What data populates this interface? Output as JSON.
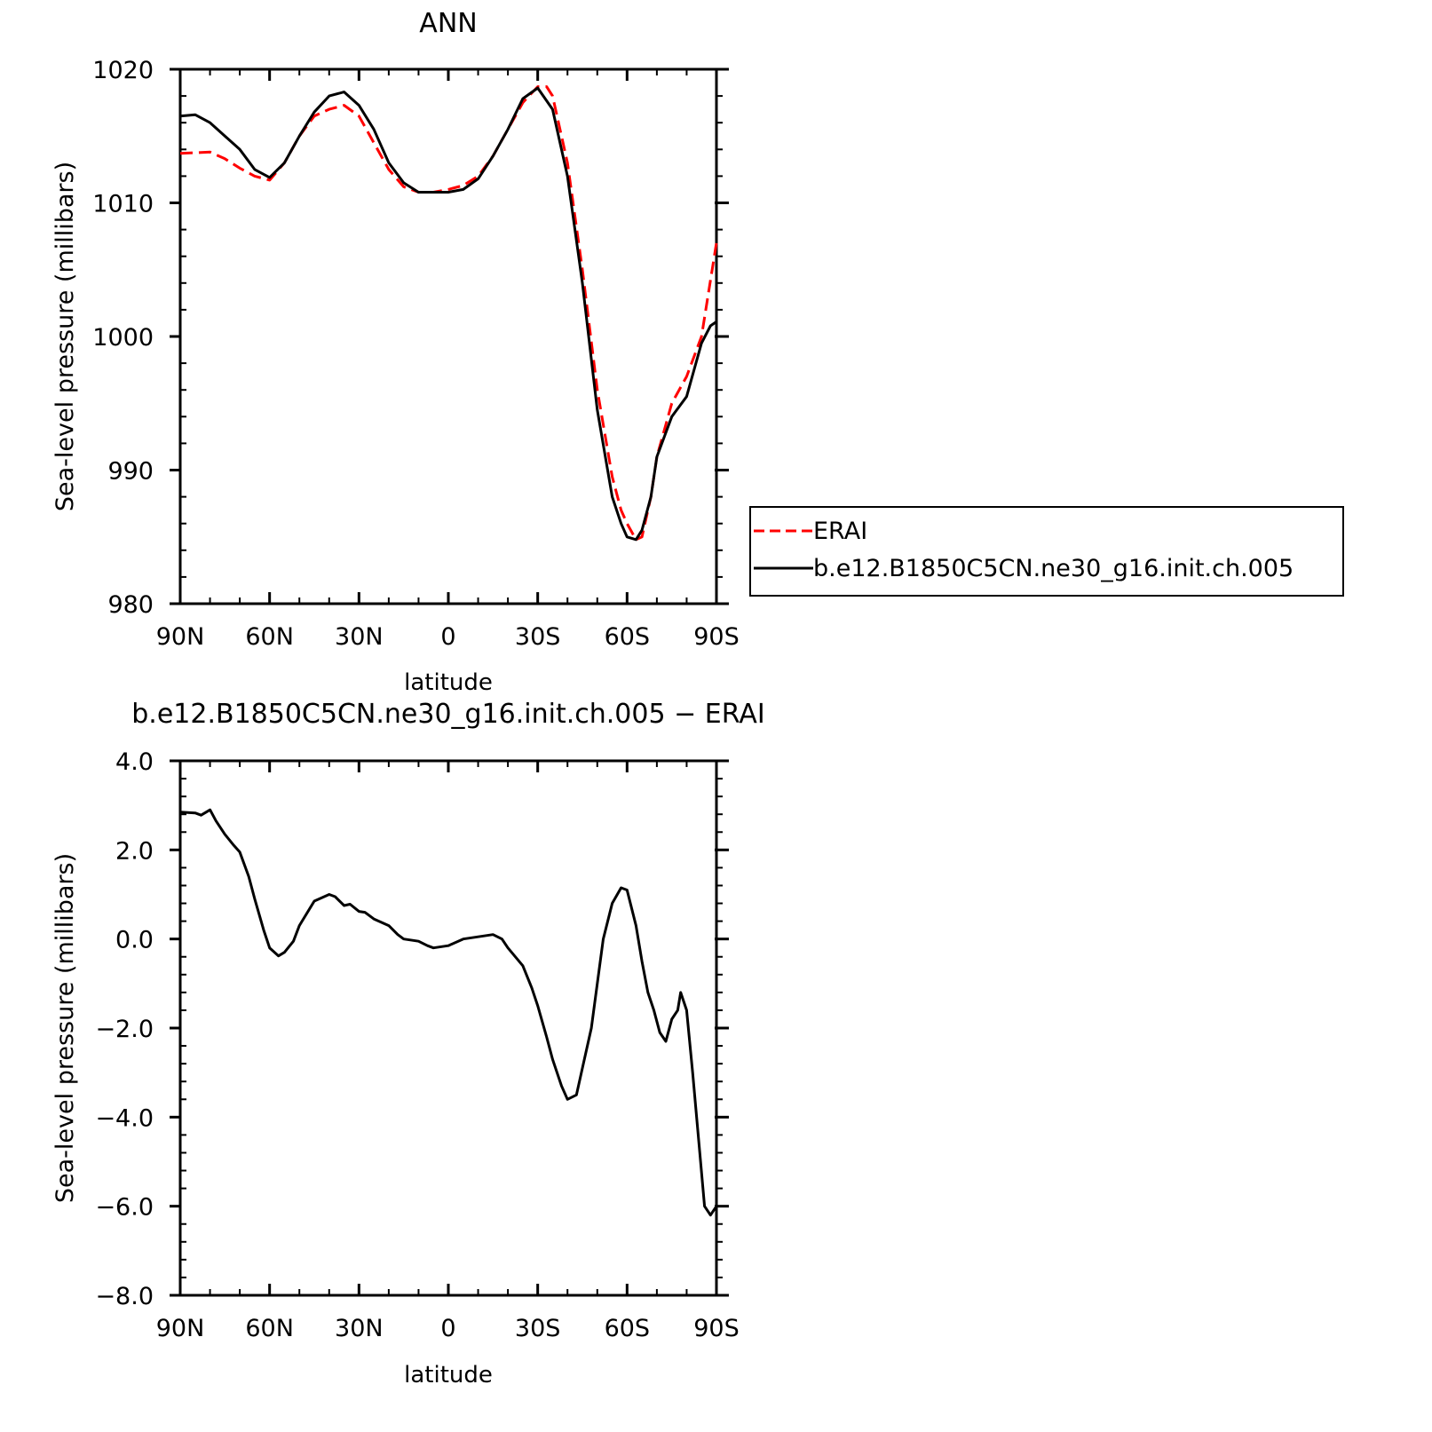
{
  "chart_data": [
    {
      "type": "line",
      "title": "ANN",
      "xlabel": "latitude",
      "ylabel": "Sea-level pressure (millibars)",
      "xlim": [
        90,
        -90
      ],
      "ylim": [
        980,
        1020
      ],
      "x_ticks": [
        {
          "value": 90,
          "label": "90N"
        },
        {
          "value": 60,
          "label": "60N"
        },
        {
          "value": 30,
          "label": "30N"
        },
        {
          "value": 0,
          "label": "0"
        },
        {
          "value": -30,
          "label": "30S"
        },
        {
          "value": -60,
          "label": "60S"
        },
        {
          "value": -90,
          "label": "90S"
        }
      ],
      "y_ticks": [
        {
          "value": 1020,
          "label": "1020"
        },
        {
          "value": 1010,
          "label": "1010"
        },
        {
          "value": 1000,
          "label": "1000"
        },
        {
          "value": 990,
          "label": "990"
        },
        {
          "value": 980,
          "label": "980"
        }
      ],
      "grid": false,
      "legend": {
        "placement": "right-outside"
      },
      "series": [
        {
          "name": "ERAI",
          "color": "#ff0000",
          "dash": "dashed",
          "x": [
            90,
            80,
            75,
            70,
            65,
            60,
            55,
            50,
            45,
            40,
            35,
            30,
            25,
            20,
            15,
            10,
            5,
            0,
            -5,
            -10,
            -15,
            -20,
            -25,
            -30,
            -33,
            -35,
            -40,
            -45,
            -50,
            -55,
            -58,
            -60,
            -63,
            -65,
            -68,
            -70,
            -75,
            -80,
            -85,
            -90
          ],
          "y": [
            1013.7,
            1013.8,
            1013.3,
            1012.6,
            1012.0,
            1011.7,
            1013.0,
            1015.0,
            1016.5,
            1017.0,
            1017.3,
            1016.5,
            1014.5,
            1012.5,
            1011.2,
            1010.8,
            1010.8,
            1011.0,
            1011.3,
            1012.0,
            1013.5,
            1015.5,
            1017.5,
            1018.7,
            1018.7,
            1018.0,
            1013.0,
            1005.0,
            996.0,
            989.5,
            987.0,
            986.0,
            984.8,
            985.0,
            988.0,
            991.0,
            995.0,
            997.0,
            1000.0,
            1007.0
          ]
        },
        {
          "name": "b.e12.B1850C5CN.ne30_g16.init.ch.005",
          "color": "#000000",
          "dash": "solid",
          "x": [
            90,
            85,
            80,
            75,
            70,
            65,
            60,
            55,
            50,
            45,
            40,
            35,
            30,
            25,
            20,
            15,
            10,
            5,
            0,
            -5,
            -10,
            -15,
            -20,
            -25,
            -30,
            -35,
            -40,
            -45,
            -50,
            -55,
            -58,
            -60,
            -63,
            -65,
            -68,
            -70,
            -75,
            -80,
            -85,
            -88,
            -90
          ],
          "y": [
            1016.5,
            1016.6,
            1016.0,
            1015.0,
            1014.0,
            1012.5,
            1011.9,
            1013.0,
            1015.0,
            1016.8,
            1018.0,
            1018.3,
            1017.3,
            1015.5,
            1013.0,
            1011.5,
            1010.8,
            1010.8,
            1010.8,
            1011.0,
            1011.8,
            1013.5,
            1015.5,
            1017.8,
            1018.6,
            1017.0,
            1012.0,
            1004.0,
            994.5,
            988.0,
            986.0,
            985.0,
            984.8,
            985.5,
            988.0,
            991.0,
            994.0,
            995.5,
            999.5,
            1000.8,
            1001.1
          ]
        }
      ]
    },
    {
      "type": "line",
      "title": "b.e12.B1850C5CN.ne30_g16.init.ch.005 − ERAI",
      "xlabel": "latitude",
      "ylabel": "Sea-level pressure (millibars)",
      "xlim": [
        90,
        -90
      ],
      "ylim": [
        -8,
        4
      ],
      "x_ticks": [
        {
          "value": 90,
          "label": "90N"
        },
        {
          "value": 60,
          "label": "60N"
        },
        {
          "value": 30,
          "label": "30N"
        },
        {
          "value": 0,
          "label": "0"
        },
        {
          "value": -30,
          "label": "30S"
        },
        {
          "value": -60,
          "label": "60S"
        },
        {
          "value": -90,
          "label": "90S"
        }
      ],
      "y_ticks": [
        {
          "value": 4,
          "label": "4.0"
        },
        {
          "value": 2,
          "label": "2.0"
        },
        {
          "value": 0,
          "label": "0.0"
        },
        {
          "value": -2,
          "label": "−2.0"
        },
        {
          "value": -4,
          "label": "−4.0"
        },
        {
          "value": -6,
          "label": "−6.0"
        },
        {
          "value": -8,
          "label": "−8.0"
        }
      ],
      "grid": false,
      "series": [
        {
          "color": "#000000",
          "dash": "solid",
          "x": [
            90,
            85,
            83,
            80,
            78,
            75,
            72,
            70,
            67,
            65,
            62,
            60,
            57,
            55,
            52,
            50,
            45,
            40,
            38,
            35,
            33,
            30,
            28,
            25,
            20,
            17,
            15,
            10,
            7,
            5,
            0,
            -5,
            -10,
            -15,
            -18,
            -20,
            -25,
            -28,
            -30,
            -33,
            -35,
            -38,
            -40,
            -43,
            -45,
            -48,
            -50,
            -52,
            -55,
            -58,
            -60,
            -63,
            -65,
            -67,
            -69,
            -71,
            -73,
            -75,
            -77,
            -78,
            -80,
            -82,
            -84,
            -86,
            -88,
            -90
          ],
          "y": [
            2.85,
            2.83,
            2.78,
            2.9,
            2.65,
            2.35,
            2.1,
            1.95,
            1.4,
            0.9,
            0.2,
            -0.2,
            -0.38,
            -0.3,
            -0.05,
            0.3,
            0.85,
            1.0,
            0.95,
            0.75,
            0.78,
            0.62,
            0.6,
            0.45,
            0.3,
            0.1,
            0.0,
            -0.05,
            -0.15,
            -0.2,
            -0.15,
            0.0,
            0.05,
            0.1,
            0.0,
            -0.2,
            -0.6,
            -1.1,
            -1.5,
            -2.2,
            -2.7,
            -3.3,
            -3.6,
            -3.5,
            -2.9,
            -2.0,
            -1.0,
            0.0,
            0.8,
            1.15,
            1.1,
            0.3,
            -0.5,
            -1.2,
            -1.6,
            -2.1,
            -2.3,
            -1.8,
            -1.6,
            -1.2,
            -1.6,
            -3.0,
            -4.5,
            -6.0,
            -6.2,
            -6.0
          ]
        }
      ]
    }
  ]
}
